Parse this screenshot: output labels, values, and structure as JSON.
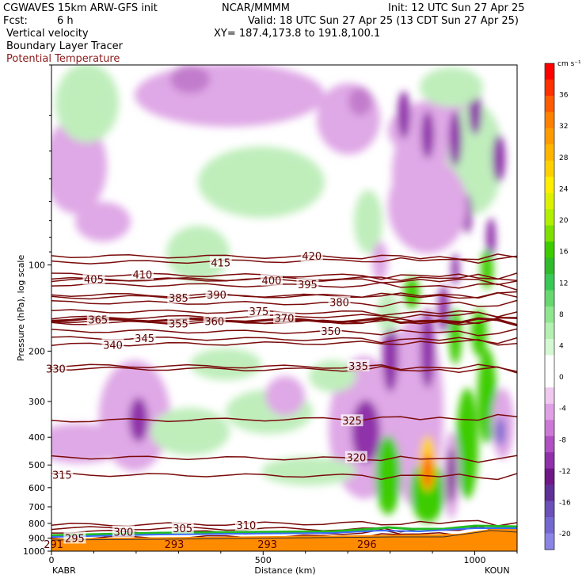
{
  "header": {
    "model": "CGWAVES 15km ARW-GFS init",
    "org": "NCAR/MMMM",
    "init": "Init: 12 UTC Sun 27 Apr 25",
    "fcst_label": "Fcst:",
    "fcst_value": "6 h",
    "valid": "Valid: 18 UTC Sun 27 Apr 25 (13 CDT Sun 27 Apr 25)",
    "xy": "XY= 187.4,173.8 to 191.8,100.1",
    "fields": [
      "Vertical velocity",
      "Boundary Layer Tracer",
      "Potential Temperature"
    ]
  },
  "colors": {
    "theta": "#7a0a0a",
    "theta_label": "#5a0000",
    "terrain": "#ff8c00",
    "field3": "#8b1a1a"
  },
  "chart_data": {
    "type": "heatmap",
    "title": "Vertical velocity",
    "xlabel": "Distance (km)",
    "ylabel": "Pressure (hPa), log scale",
    "xlim": [
      0,
      1100
    ],
    "ylim": [
      1000,
      20
    ],
    "y_scale": "log",
    "x_ticks": [
      0,
      500,
      1000
    ],
    "y_ticks": [
      100,
      200,
      300,
      400,
      500,
      600,
      700,
      800,
      900,
      1000
    ],
    "endpoints": [
      "KABR",
      "KOUN"
    ],
    "colorbar": {
      "unit": "cm s⁻¹",
      "labels": [
        36,
        32,
        28,
        24,
        20,
        16,
        12,
        8,
        4,
        0,
        -4,
        -8,
        -12,
        -16,
        -20
      ],
      "colors": [
        "#ff0000",
        "#ff3000",
        "#ff5a00",
        "#ff8000",
        "#ff9a00",
        "#ffb400",
        "#ffd000",
        "#ffee00",
        "#ddf000",
        "#b0f000",
        "#7de000",
        "#3ccc00",
        "#2fbb2a",
        "#39c855",
        "#66d86e",
        "#8ee68e",
        "#b4f0b0",
        "#d4f8d2",
        "#ffffff",
        "#ffffff",
        "#f0c8f0",
        "#e0a0e6",
        "#cc78d6",
        "#b050c2",
        "#9030aa",
        "#701888",
        "#603098",
        "#6a50b8",
        "#7468d0",
        "#8a84e6"
      ]
    },
    "theta_contours": [
      {
        "value": 295,
        "x": 55,
        "p": 900
      },
      {
        "value": 300,
        "x": 170,
        "p": 855
      },
      {
        "value": 305,
        "x": 310,
        "p": 830
      },
      {
        "value": 310,
        "x": 460,
        "p": 810
      },
      {
        "value": 315,
        "x": 25,
        "p": 540
      },
      {
        "value": 320,
        "x": 720,
        "p": 470
      },
      {
        "value": 325,
        "x": 710,
        "p": 350
      },
      {
        "value": 330,
        "x": 10,
        "p": 230
      },
      {
        "value": 335,
        "x": 725,
        "p": 225
      },
      {
        "value": 340,
        "x": 145,
        "p": 190
      },
      {
        "value": 345,
        "x": 220,
        "p": 180
      },
      {
        "value": 350,
        "x": 660,
        "p": 170
      },
      {
        "value": 355,
        "x": 300,
        "p": 160
      },
      {
        "value": 360,
        "x": 385,
        "p": 157
      },
      {
        "value": 365,
        "x": 110,
        "p": 155
      },
      {
        "value": 370,
        "x": 550,
        "p": 153
      },
      {
        "value": 375,
        "x": 490,
        "p": 145
      },
      {
        "value": 380,
        "x": 680,
        "p": 135
      },
      {
        "value": 385,
        "x": 300,
        "p": 130
      },
      {
        "value": 390,
        "x": 390,
        "p": 127
      },
      {
        "value": 395,
        "x": 605,
        "p": 117
      },
      {
        "value": 400,
        "x": 520,
        "p": 113
      },
      {
        "value": 405,
        "x": 100,
        "p": 112
      },
      {
        "value": 410,
        "x": 215,
        "p": 108
      },
      {
        "value": 415,
        "x": 400,
        "p": 98
      },
      {
        "value": 420,
        "x": 615,
        "p": 93
      }
    ],
    "terrain_labels": [
      {
        "value": 291,
        "x": 5
      },
      {
        "value": 293,
        "x": 290
      },
      {
        "value": 293,
        "x": 510
      },
      {
        "value": 296,
        "x": 745
      }
    ]
  }
}
